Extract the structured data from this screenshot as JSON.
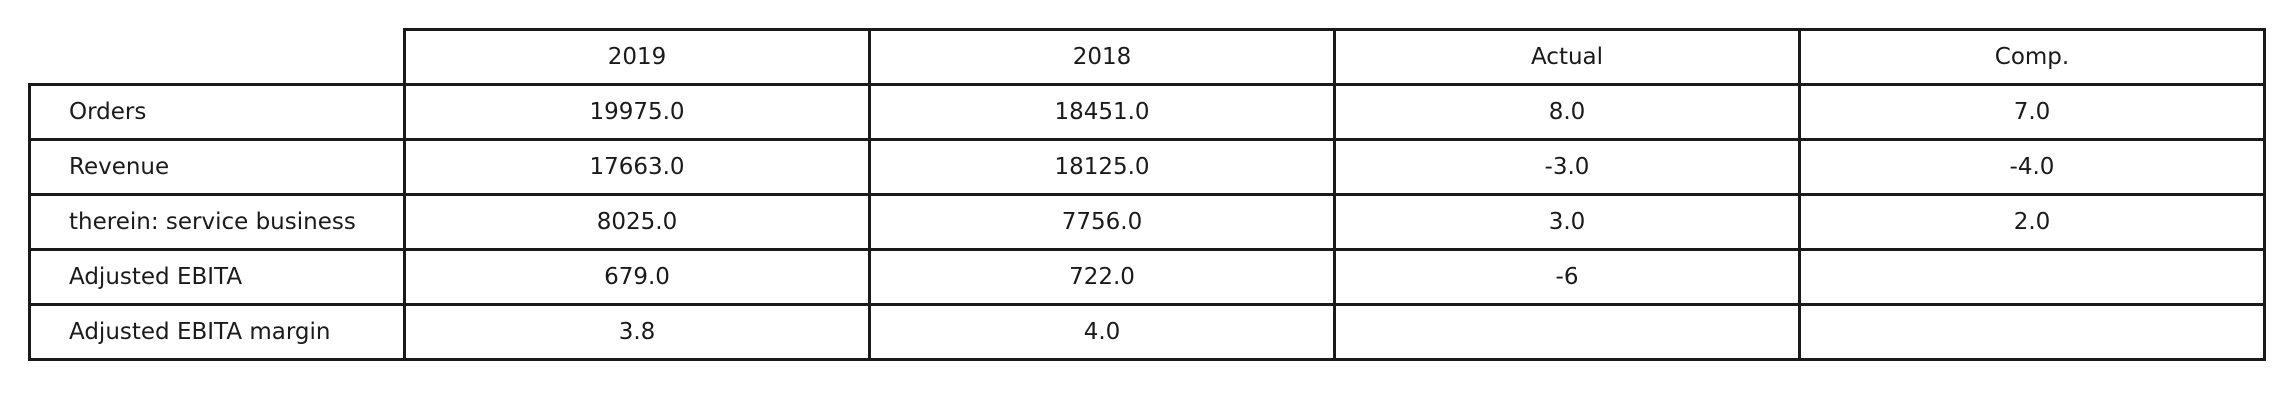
{
  "chart_data": {
    "type": "table",
    "columns": [
      "2019",
      "2018",
      "Actual",
      "Comp."
    ],
    "rows": [
      {
        "label": "Orders",
        "cells": [
          "19975.0",
          "18451.0",
          "8.0",
          "7.0"
        ]
      },
      {
        "label": "Revenue",
        "cells": [
          "17663.0",
          "18125.0",
          "-3.0",
          "-4.0"
        ]
      },
      {
        "label": "therein: service business",
        "cells": [
          "8025.0",
          "7756.0",
          "3.0",
          "2.0"
        ]
      },
      {
        "label": "Adjusted EBITA",
        "cells": [
          "679.0",
          "722.0",
          "-6",
          ""
        ]
      },
      {
        "label": "Adjusted EBITA margin",
        "cells": [
          "3.8",
          "4.0",
          "",
          ""
        ]
      }
    ]
  }
}
